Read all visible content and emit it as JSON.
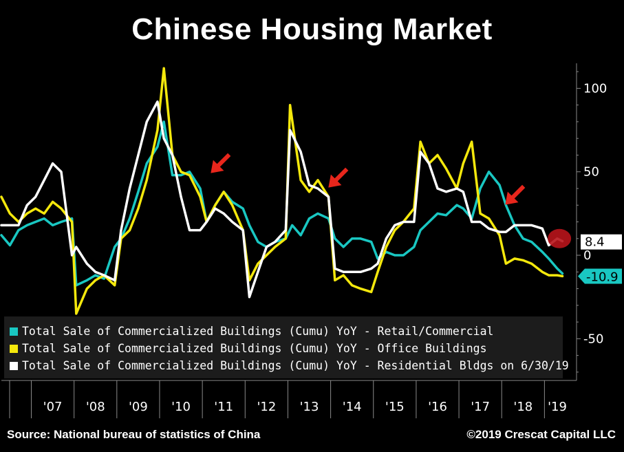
{
  "title": "Chinese Housing Market",
  "source": "Source: National bureau of statistics of China",
  "copyright": "©2019 Crescat Capital LLC",
  "chart_data": {
    "type": "line",
    "title": "Chinese Housing Market",
    "xlim": [
      2006.3,
      2019.75
    ],
    "ylim": [
      -75,
      115
    ],
    "y_ticks": [
      100,
      50,
      0,
      -50
    ],
    "y_tick_labels": [
      "100",
      "50",
      "0",
      "-50"
    ],
    "x_tick_labels": [
      "'07",
      "'08",
      "'09",
      "'10",
      "'11",
      "'12",
      "'13",
      "'14",
      "'15",
      "'16",
      "'17",
      "'18",
      "'19"
    ],
    "x_tick_years": [
      2007,
      2008,
      2009,
      2010,
      2011,
      2012,
      2013,
      2014,
      2015,
      2016,
      2017,
      2018,
      2019
    ],
    "legend_placement": "bottom-left",
    "series": [
      {
        "name": "Total Sale of Commercialized Buildings (Cumu) YoY - Retail/Commercial",
        "color": "#19c7c2",
        "last_label": "-10.9",
        "x": [
          2006.3,
          2006.5,
          2006.7,
          2006.9,
          2007.1,
          2007.3,
          2007.5,
          2007.7,
          2007.95,
          2008.05,
          2008.3,
          2008.5,
          2008.7,
          2008.95,
          2009.1,
          2009.3,
          2009.5,
          2009.7,
          2009.95,
          2010.1,
          2010.3,
          2010.5,
          2010.7,
          2010.95,
          2011.1,
          2011.3,
          2011.5,
          2011.7,
          2011.95,
          2012.1,
          2012.3,
          2012.5,
          2012.7,
          2012.95,
          2013.1,
          2013.3,
          2013.5,
          2013.7,
          2013.95,
          2014.1,
          2014.3,
          2014.5,
          2014.7,
          2014.95,
          2015.1,
          2015.3,
          2015.5,
          2015.7,
          2015.95,
          2016.1,
          2016.3,
          2016.5,
          2016.7,
          2016.95,
          2017.1,
          2017.3,
          2017.5,
          2017.7,
          2017.95,
          2018.1,
          2018.3,
          2018.5,
          2018.7,
          2018.95,
          2019.1,
          2019.3,
          2019.42
        ],
        "y": [
          12,
          6,
          15,
          18,
          20,
          22,
          18,
          20,
          22,
          -18,
          -15,
          -12,
          -14,
          5,
          10,
          22,
          38,
          55,
          65,
          80,
          48,
          48,
          50,
          40,
          20,
          30,
          38,
          32,
          28,
          18,
          8,
          5,
          8,
          10,
          18,
          12,
          22,
          25,
          22,
          10,
          5,
          10,
          10,
          8,
          -2,
          2,
          0,
          0,
          5,
          15,
          20,
          25,
          24,
          30,
          28,
          22,
          40,
          50,
          42,
          30,
          18,
          10,
          8,
          2,
          -2,
          -8,
          -10.9
        ]
      },
      {
        "name": "Total Sale of Commercialized Buildings (Cumu) YoY - Office Buildings",
        "color": "#f4e80c",
        "last_label": "",
        "x": [
          2006.3,
          2006.5,
          2006.7,
          2006.9,
          2007.1,
          2007.3,
          2007.5,
          2007.7,
          2007.95,
          2008.05,
          2008.3,
          2008.5,
          2008.7,
          2008.95,
          2009.1,
          2009.3,
          2009.5,
          2009.7,
          2009.95,
          2010.1,
          2010.3,
          2010.5,
          2010.7,
          2010.95,
          2011.1,
          2011.3,
          2011.5,
          2011.7,
          2011.95,
          2012.1,
          2012.3,
          2012.5,
          2012.7,
          2012.95,
          2013.05,
          2013.3,
          2013.5,
          2013.7,
          2013.95,
          2014.1,
          2014.3,
          2014.5,
          2014.7,
          2014.95,
          2015.1,
          2015.3,
          2015.5,
          2015.7,
          2015.95,
          2016.1,
          2016.3,
          2016.5,
          2016.7,
          2016.95,
          2017.1,
          2017.3,
          2017.5,
          2017.7,
          2017.95,
          2018.1,
          2018.3,
          2018.5,
          2018.7,
          2018.95,
          2019.1,
          2019.3,
          2019.42
        ],
        "y": [
          35,
          25,
          20,
          25,
          28,
          25,
          32,
          28,
          20,
          -35,
          -20,
          -15,
          -12,
          -18,
          10,
          15,
          28,
          45,
          75,
          112,
          60,
          50,
          48,
          35,
          20,
          30,
          38,
          30,
          15,
          -15,
          -5,
          0,
          5,
          10,
          90,
          45,
          38,
          45,
          35,
          -15,
          -12,
          -18,
          -20,
          -22,
          -10,
          5,
          15,
          20,
          28,
          68,
          55,
          60,
          52,
          40,
          55,
          68,
          25,
          22,
          12,
          -5,
          -2,
          -3,
          -5,
          -10,
          -12,
          -12,
          -12.5
        ]
      },
      {
        "name": "Total Sale of Commercialized Buildings (Cumu) YoY - Residential Bldgs on 6/30/19",
        "color": "#ffffff",
        "last_label": "8.4",
        "x": [
          2006.3,
          2006.5,
          2006.7,
          2006.9,
          2007.1,
          2007.3,
          2007.5,
          2007.7,
          2007.95,
          2008.05,
          2008.3,
          2008.5,
          2008.7,
          2008.95,
          2009.1,
          2009.3,
          2009.5,
          2009.7,
          2009.95,
          2010.1,
          2010.3,
          2010.5,
          2010.7,
          2010.95,
          2011.1,
          2011.3,
          2011.5,
          2011.7,
          2011.95,
          2012.1,
          2012.3,
          2012.5,
          2012.7,
          2012.95,
          2013.05,
          2013.3,
          2013.5,
          2013.7,
          2013.95,
          2014.1,
          2014.3,
          2014.5,
          2014.7,
          2014.95,
          2015.1,
          2015.3,
          2015.5,
          2015.7,
          2015.95,
          2016.1,
          2016.3,
          2016.5,
          2016.7,
          2016.95,
          2017.1,
          2017.3,
          2017.5,
          2017.7,
          2017.95,
          2018.1,
          2018.3,
          2018.5,
          2018.7,
          2018.95,
          2019.1,
          2019.3,
          2019.42
        ],
        "y": [
          18,
          18,
          18,
          30,
          35,
          45,
          55,
          50,
          0,
          5,
          -5,
          -10,
          -12,
          -15,
          15,
          40,
          60,
          80,
          92,
          70,
          60,
          35,
          15,
          15,
          20,
          28,
          25,
          20,
          15,
          -25,
          -10,
          5,
          8,
          15,
          75,
          62,
          42,
          40,
          35,
          -8,
          -10,
          -10,
          -10,
          -8,
          -5,
          10,
          18,
          20,
          20,
          62,
          55,
          40,
          38,
          40,
          38,
          20,
          20,
          16,
          14,
          14,
          18,
          18,
          18,
          16,
          6,
          10,
          8.4
        ]
      }
    ]
  },
  "annotations": {
    "arrow_color": "#e8261c",
    "highlight_color": "#b8141b"
  }
}
